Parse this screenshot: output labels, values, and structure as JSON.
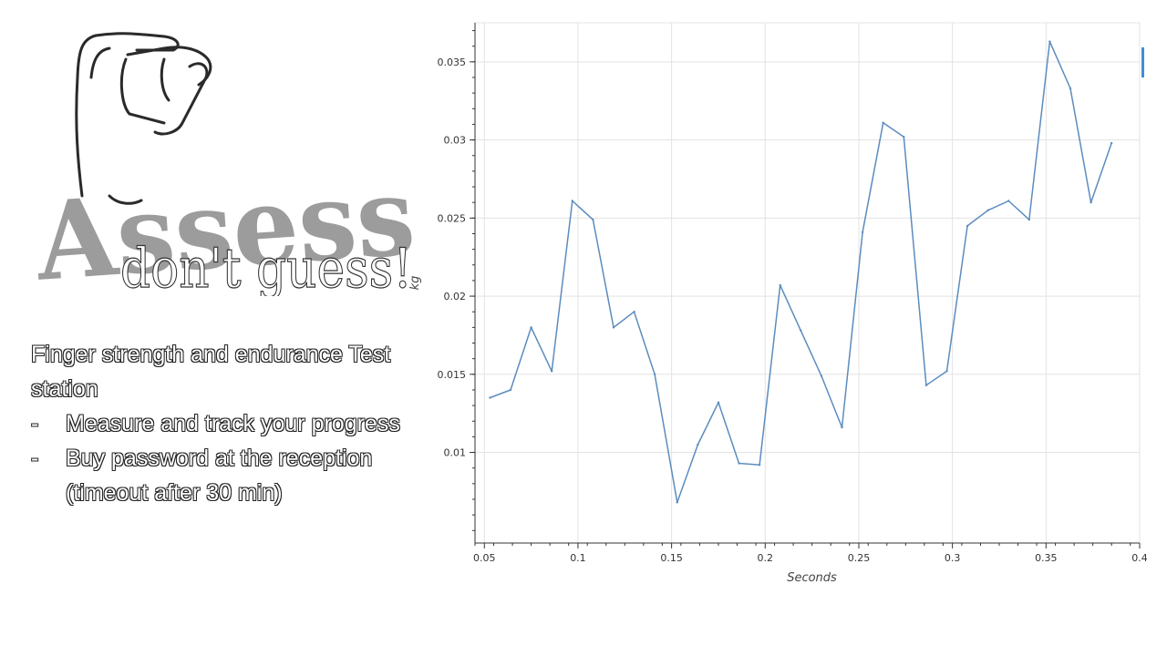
{
  "logo": {
    "title": "Assess",
    "subtitle": "don't guess!",
    "hand_icon": "pinch-hand-icon"
  },
  "info": {
    "intro": "Finger strength and endurance Test station",
    "bullets": [
      "Measure and track your progress",
      "Buy password at the reception (timeout after 30 min)"
    ],
    "bullet_marker": "-"
  },
  "chart_data": {
    "type": "line",
    "xlabel": "Seconds",
    "ylabel": "kg",
    "xlim": [
      0.045,
      0.4
    ],
    "ylim": [
      0.0042,
      0.0375
    ],
    "xticks": [
      0.05,
      0.1,
      0.15,
      0.2,
      0.25,
      0.3,
      0.35,
      0.4
    ],
    "xtick_labels": [
      "0.05",
      "0.1",
      "0.15",
      "0.2",
      "0.25",
      "0.3",
      "0.35",
      "0.4"
    ],
    "yticks": [
      0.01,
      0.015,
      0.02,
      0.025,
      0.03,
      0.035
    ],
    "ytick_labels": [
      "0.01",
      "0.015",
      "0.02",
      "0.025",
      "0.03",
      "0.035"
    ],
    "grid": true,
    "line_color": "#5b8cbf",
    "series": [
      {
        "x": [
          0.053,
          0.064,
          0.075,
          0.086,
          0.097,
          0.108,
          0.119,
          0.13,
          0.141,
          0.153,
          0.164,
          0.175,
          0.186,
          0.197,
          0.208,
          0.219,
          0.23,
          0.241,
          0.252,
          0.263,
          0.274,
          0.286,
          0.297,
          0.308,
          0.319,
          0.33,
          0.341,
          0.352,
          0.363,
          0.374,
          0.385
        ],
        "y": [
          0.0135,
          0.014,
          0.018,
          0.0152,
          0.0261,
          0.0249,
          0.018,
          0.019,
          0.015,
          0.0068,
          0.0105,
          0.0132,
          0.0093,
          0.0092,
          0.0207,
          0.0178,
          0.0149,
          0.0116,
          0.0241,
          0.0311,
          0.0302,
          0.0143,
          0.0152,
          0.0245,
          0.0255,
          0.0261,
          0.0249,
          0.0363,
          0.0333,
          0.026,
          0.0298
        ]
      }
    ]
  }
}
